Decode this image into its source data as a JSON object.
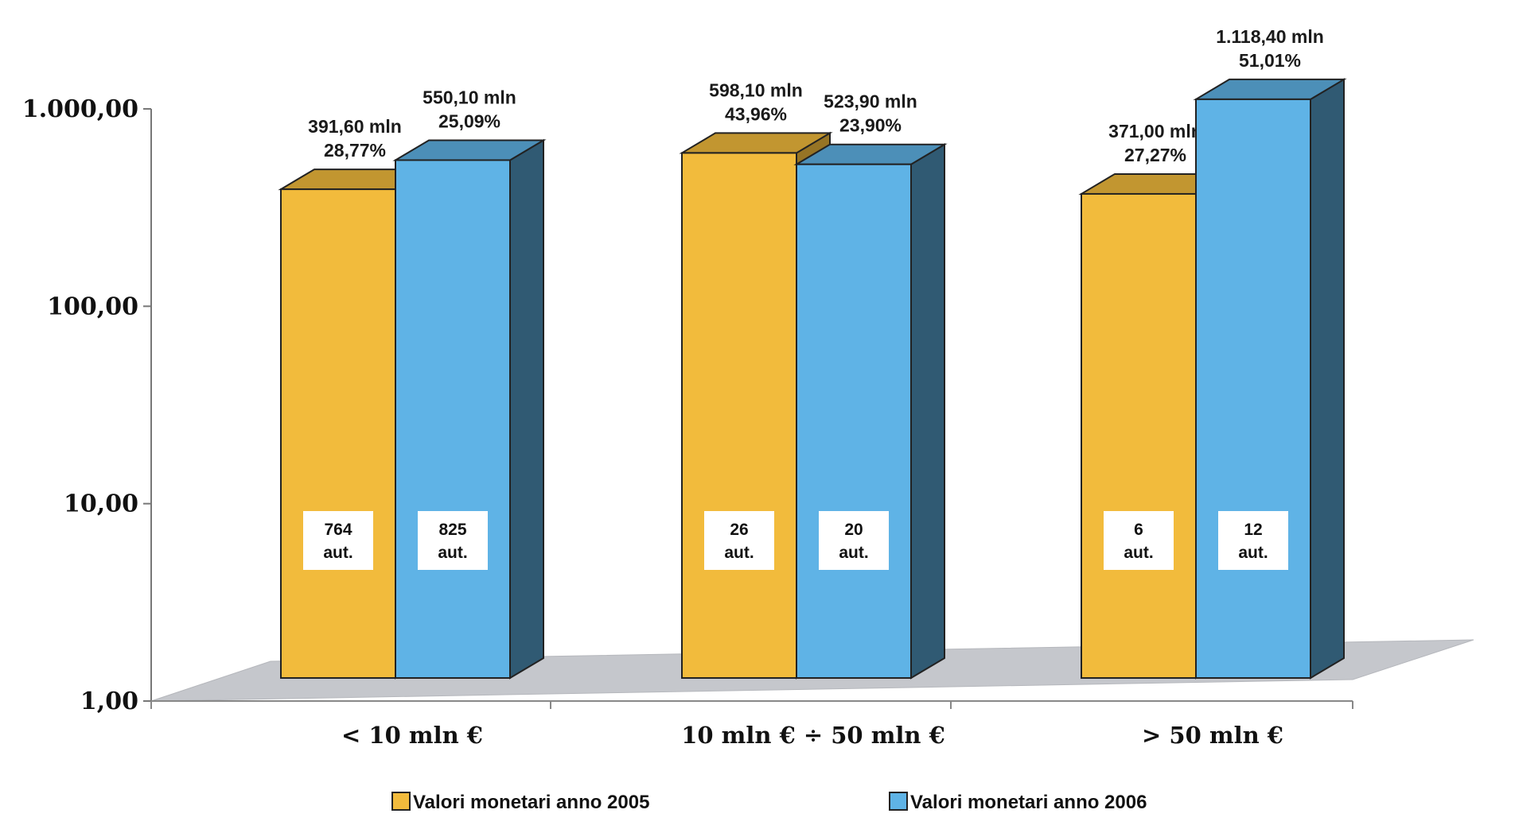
{
  "chart_data": {
    "type": "bar",
    "scale": "log",
    "ylim": [
      1,
      1000
    ],
    "yticks": [
      "1,00",
      "10,00",
      "100,00",
      "1.000,00"
    ],
    "categories": [
      "< 10 mln €",
      "10 mln € ÷ 50 mln €",
      "> 50 mln  €"
    ],
    "series": [
      {
        "name": "Valori monetari anno 2005",
        "color": "#f2bb3c",
        "values": [
          391.6,
          598.1,
          371.0
        ],
        "value_labels": [
          "391,60 mln",
          "598,10 mln",
          "371,00 mln"
        ],
        "pct_labels": [
          "28,77%",
          "43,96%",
          "27,27%"
        ],
        "count_labels": [
          "764",
          "26",
          "6"
        ]
      },
      {
        "name": "Valori monetari anno 2006",
        "color": "#5fb3e6",
        "values": [
          550.1,
          523.9,
          1118.4
        ],
        "value_labels": [
          "550,10 mln",
          "523,90 mln",
          "1.118,40 mln"
        ],
        "pct_labels": [
          "25,09%",
          "23,90%",
          "51,01%"
        ],
        "count_labels": [
          "825",
          "20",
          "12"
        ]
      }
    ],
    "count_unit": "aut.",
    "legend_position": "bottom",
    "grid": false
  }
}
